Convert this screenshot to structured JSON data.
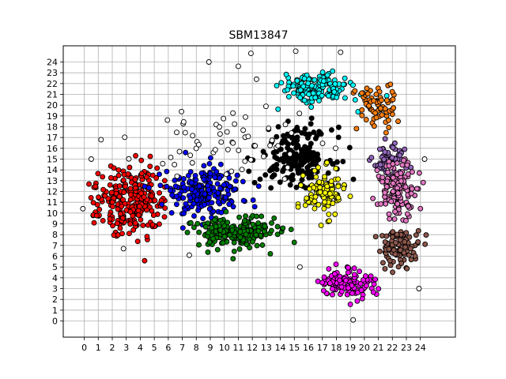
{
  "chart_data": {
    "type": "scatter",
    "title": "SBM13847",
    "xlabel": "",
    "ylabel": "",
    "xlim": [
      -1.5,
      26.5
    ],
    "ylim": [
      -1.5,
      25.5
    ],
    "grid": true,
    "legend": "none",
    "x_ticks": [
      "0",
      "1",
      "2",
      "3",
      "4",
      "5",
      "6",
      "7",
      "8",
      "9",
      "10",
      "11",
      "12",
      "13",
      "14",
      "15",
      "16",
      "17",
      "18",
      "19",
      "20",
      "21",
      "22",
      "23",
      "24"
    ],
    "y_ticks": [
      "0",
      "1",
      "2",
      "3",
      "4",
      "5",
      "6",
      "7",
      "8",
      "9",
      "10",
      "11",
      "12",
      "13",
      "14",
      "15",
      "16",
      "17",
      "18",
      "19",
      "20",
      "21",
      "22",
      "23",
      "24"
    ],
    "point_style": {
      "radius_pt": 3,
      "edge_color": "#000000"
    },
    "clusters": [
      {
        "color": "#ff0000",
        "center": [
          3.2,
          11.2
        ],
        "spread": [
          1.7,
          2.2
        ],
        "count": 260
      },
      {
        "color": "#0000ff",
        "center": [
          8.6,
          12.0
        ],
        "spread": [
          2.1,
          1.6
        ],
        "count": 220
      },
      {
        "color": "#008000",
        "center": [
          10.5,
          8.2
        ],
        "spread": [
          2.3,
          1.1
        ],
        "count": 200
      },
      {
        "color": "#000000",
        "center": [
          15.2,
          15.3
        ],
        "spread": [
          1.8,
          1.8
        ],
        "count": 200
      },
      {
        "color": "#00ffff",
        "center": [
          16.5,
          21.5
        ],
        "spread": [
          1.7,
          1.0
        ],
        "count": 160
      },
      {
        "color": "#ffff00",
        "center": [
          17.2,
          11.8
        ],
        "spread": [
          1.0,
          1.5
        ],
        "count": 110
      },
      {
        "color": "#ff7f0e",
        "center": [
          20.8,
          19.8
        ],
        "spread": [
          1.0,
          1.6
        ],
        "count": 70
      },
      {
        "color": "#9467bd",
        "center": [
          21.8,
          14.8
        ],
        "spread": [
          0.9,
          1.2
        ],
        "count": 60
      },
      {
        "color": "#e377c2",
        "center": [
          22.4,
          12.2
        ],
        "spread": [
          1.0,
          1.8
        ],
        "count": 130
      },
      {
        "color": "#8c564b",
        "center": [
          22.5,
          6.8
        ],
        "spread": [
          1.1,
          1.2
        ],
        "count": 90
      },
      {
        "color": "#ff00ff",
        "center": [
          18.8,
          3.6
        ],
        "spread": [
          1.4,
          1.0
        ],
        "count": 120
      },
      {
        "color": "#ffffff",
        "center": [
          10.5,
          16.5
        ],
        "spread": [
          4.5,
          2.5
        ],
        "count": 60
      }
    ],
    "outliers": [
      {
        "x": -0.1,
        "y": 10.4
      },
      {
        "x": 0.5,
        "y": 15.0
      },
      {
        "x": 1.2,
        "y": 16.8
      },
      {
        "x": 8.9,
        "y": 24.0
      },
      {
        "x": 11.9,
        "y": 24.8
      },
      {
        "x": 11.0,
        "y": 23.6
      },
      {
        "x": 12.3,
        "y": 22.4
      },
      {
        "x": 15.1,
        "y": 25.0
      },
      {
        "x": 18.3,
        "y": 24.9
      },
      {
        "x": 19.2,
        "y": 0.1
      },
      {
        "x": 23.9,
        "y": 3.0
      },
      {
        "x": 24.3,
        "y": 15.0
      },
      {
        "x": 15.4,
        "y": 5.0
      },
      {
        "x": 7.5,
        "y": 6.1
      },
      {
        "x": 2.8,
        "y": 6.7
      }
    ]
  }
}
